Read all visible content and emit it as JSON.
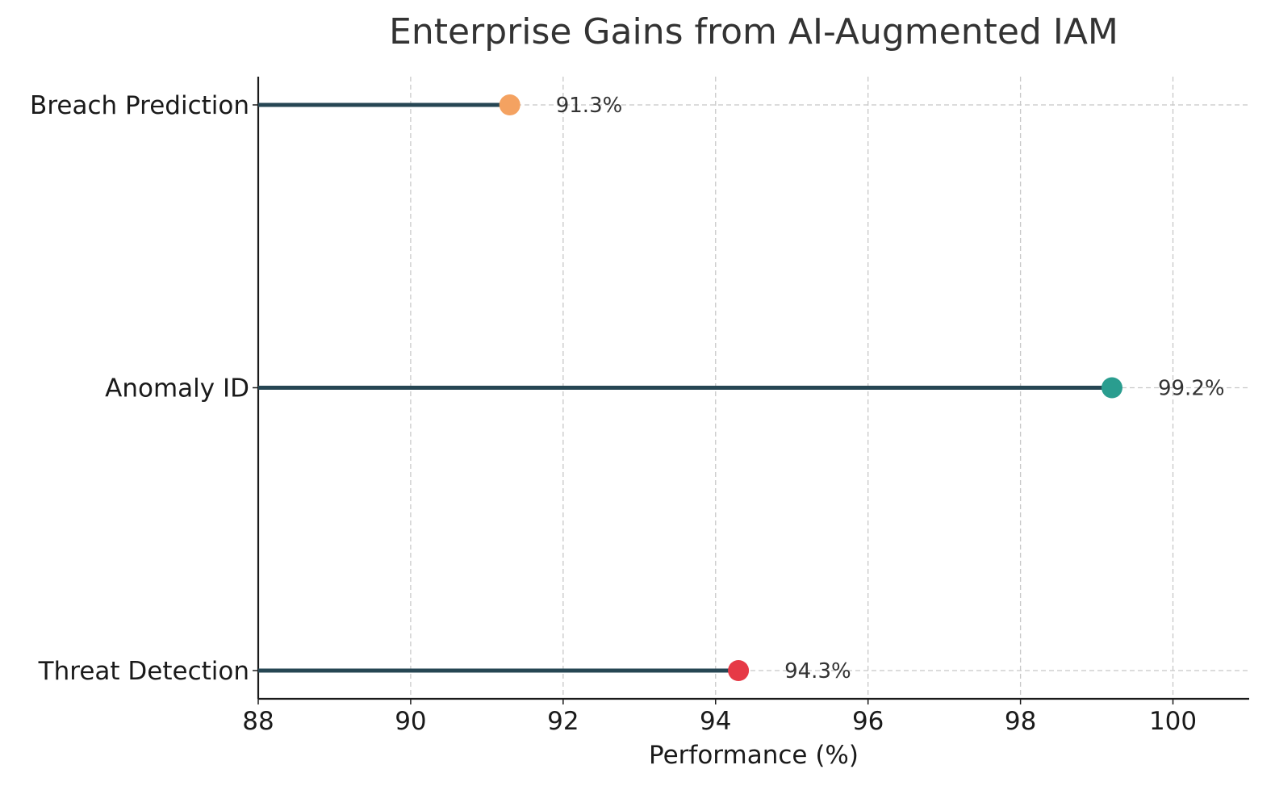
{
  "chart_data": {
    "type": "lollipop",
    "title": "Enterprise Gains from AI-Augmented IAM",
    "xlabel": "Performance (%)",
    "ylabel": "",
    "xlim": [
      88,
      101
    ],
    "x_ticks": [
      88,
      90,
      92,
      94,
      96,
      98,
      100
    ],
    "grid": true,
    "grid_style": "dashed",
    "stem_color": "#264653",
    "categories": [
      "Threat Detection",
      "Anomaly ID",
      "Breach Prediction"
    ],
    "values": [
      94.3,
      99.2,
      91.3
    ],
    "value_labels": [
      "94.3%",
      "99.2%",
      "91.3%"
    ],
    "point_colors": [
      "#e63946",
      "#2a9d8f",
      "#f4a261"
    ]
  }
}
